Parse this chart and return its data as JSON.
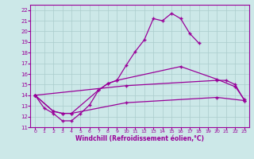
{
  "xlabel": "Windchill (Refroidissement éolien,°C)",
  "xlim": [
    -0.5,
    23.5
  ],
  "ylim": [
    11,
    22.5
  ],
  "x_ticks": [
    0,
    1,
    2,
    3,
    4,
    5,
    6,
    7,
    8,
    9,
    10,
    11,
    12,
    13,
    14,
    15,
    16,
    17,
    18,
    19,
    20,
    21,
    22,
    23
  ],
  "yticks": [
    11,
    12,
    13,
    14,
    15,
    16,
    17,
    18,
    19,
    20,
    21,
    22
  ],
  "line_color": "#990099",
  "bg_color": "#cce8e8",
  "grid_color": "#aacccc",
  "line1_x": [
    0,
    1,
    2,
    3,
    4,
    5,
    6,
    7,
    8,
    9,
    10,
    11,
    12,
    13,
    14,
    15,
    16,
    17,
    18
  ],
  "line1_y": [
    14.0,
    12.8,
    12.3,
    11.6,
    11.6,
    12.3,
    13.1,
    14.5,
    15.1,
    15.4,
    16.8,
    18.1,
    19.2,
    21.2,
    21.0,
    21.7,
    21.2,
    19.8,
    18.9
  ],
  "line2_x": [
    0,
    2,
    3,
    4,
    7,
    8,
    9,
    16,
    20,
    22,
    23
  ],
  "line2_y": [
    14.0,
    12.5,
    12.3,
    12.3,
    14.5,
    15.1,
    15.4,
    16.7,
    15.5,
    14.8,
    13.6
  ],
  "line3_x": [
    0,
    10,
    20,
    21,
    22,
    23
  ],
  "line3_y": [
    14.0,
    14.9,
    15.4,
    15.4,
    15.0,
    13.5
  ],
  "line4_x": [
    0,
    2,
    3,
    4,
    10,
    20,
    23
  ],
  "line4_y": [
    14.0,
    12.5,
    12.3,
    12.3,
    13.3,
    13.8,
    13.5
  ]
}
